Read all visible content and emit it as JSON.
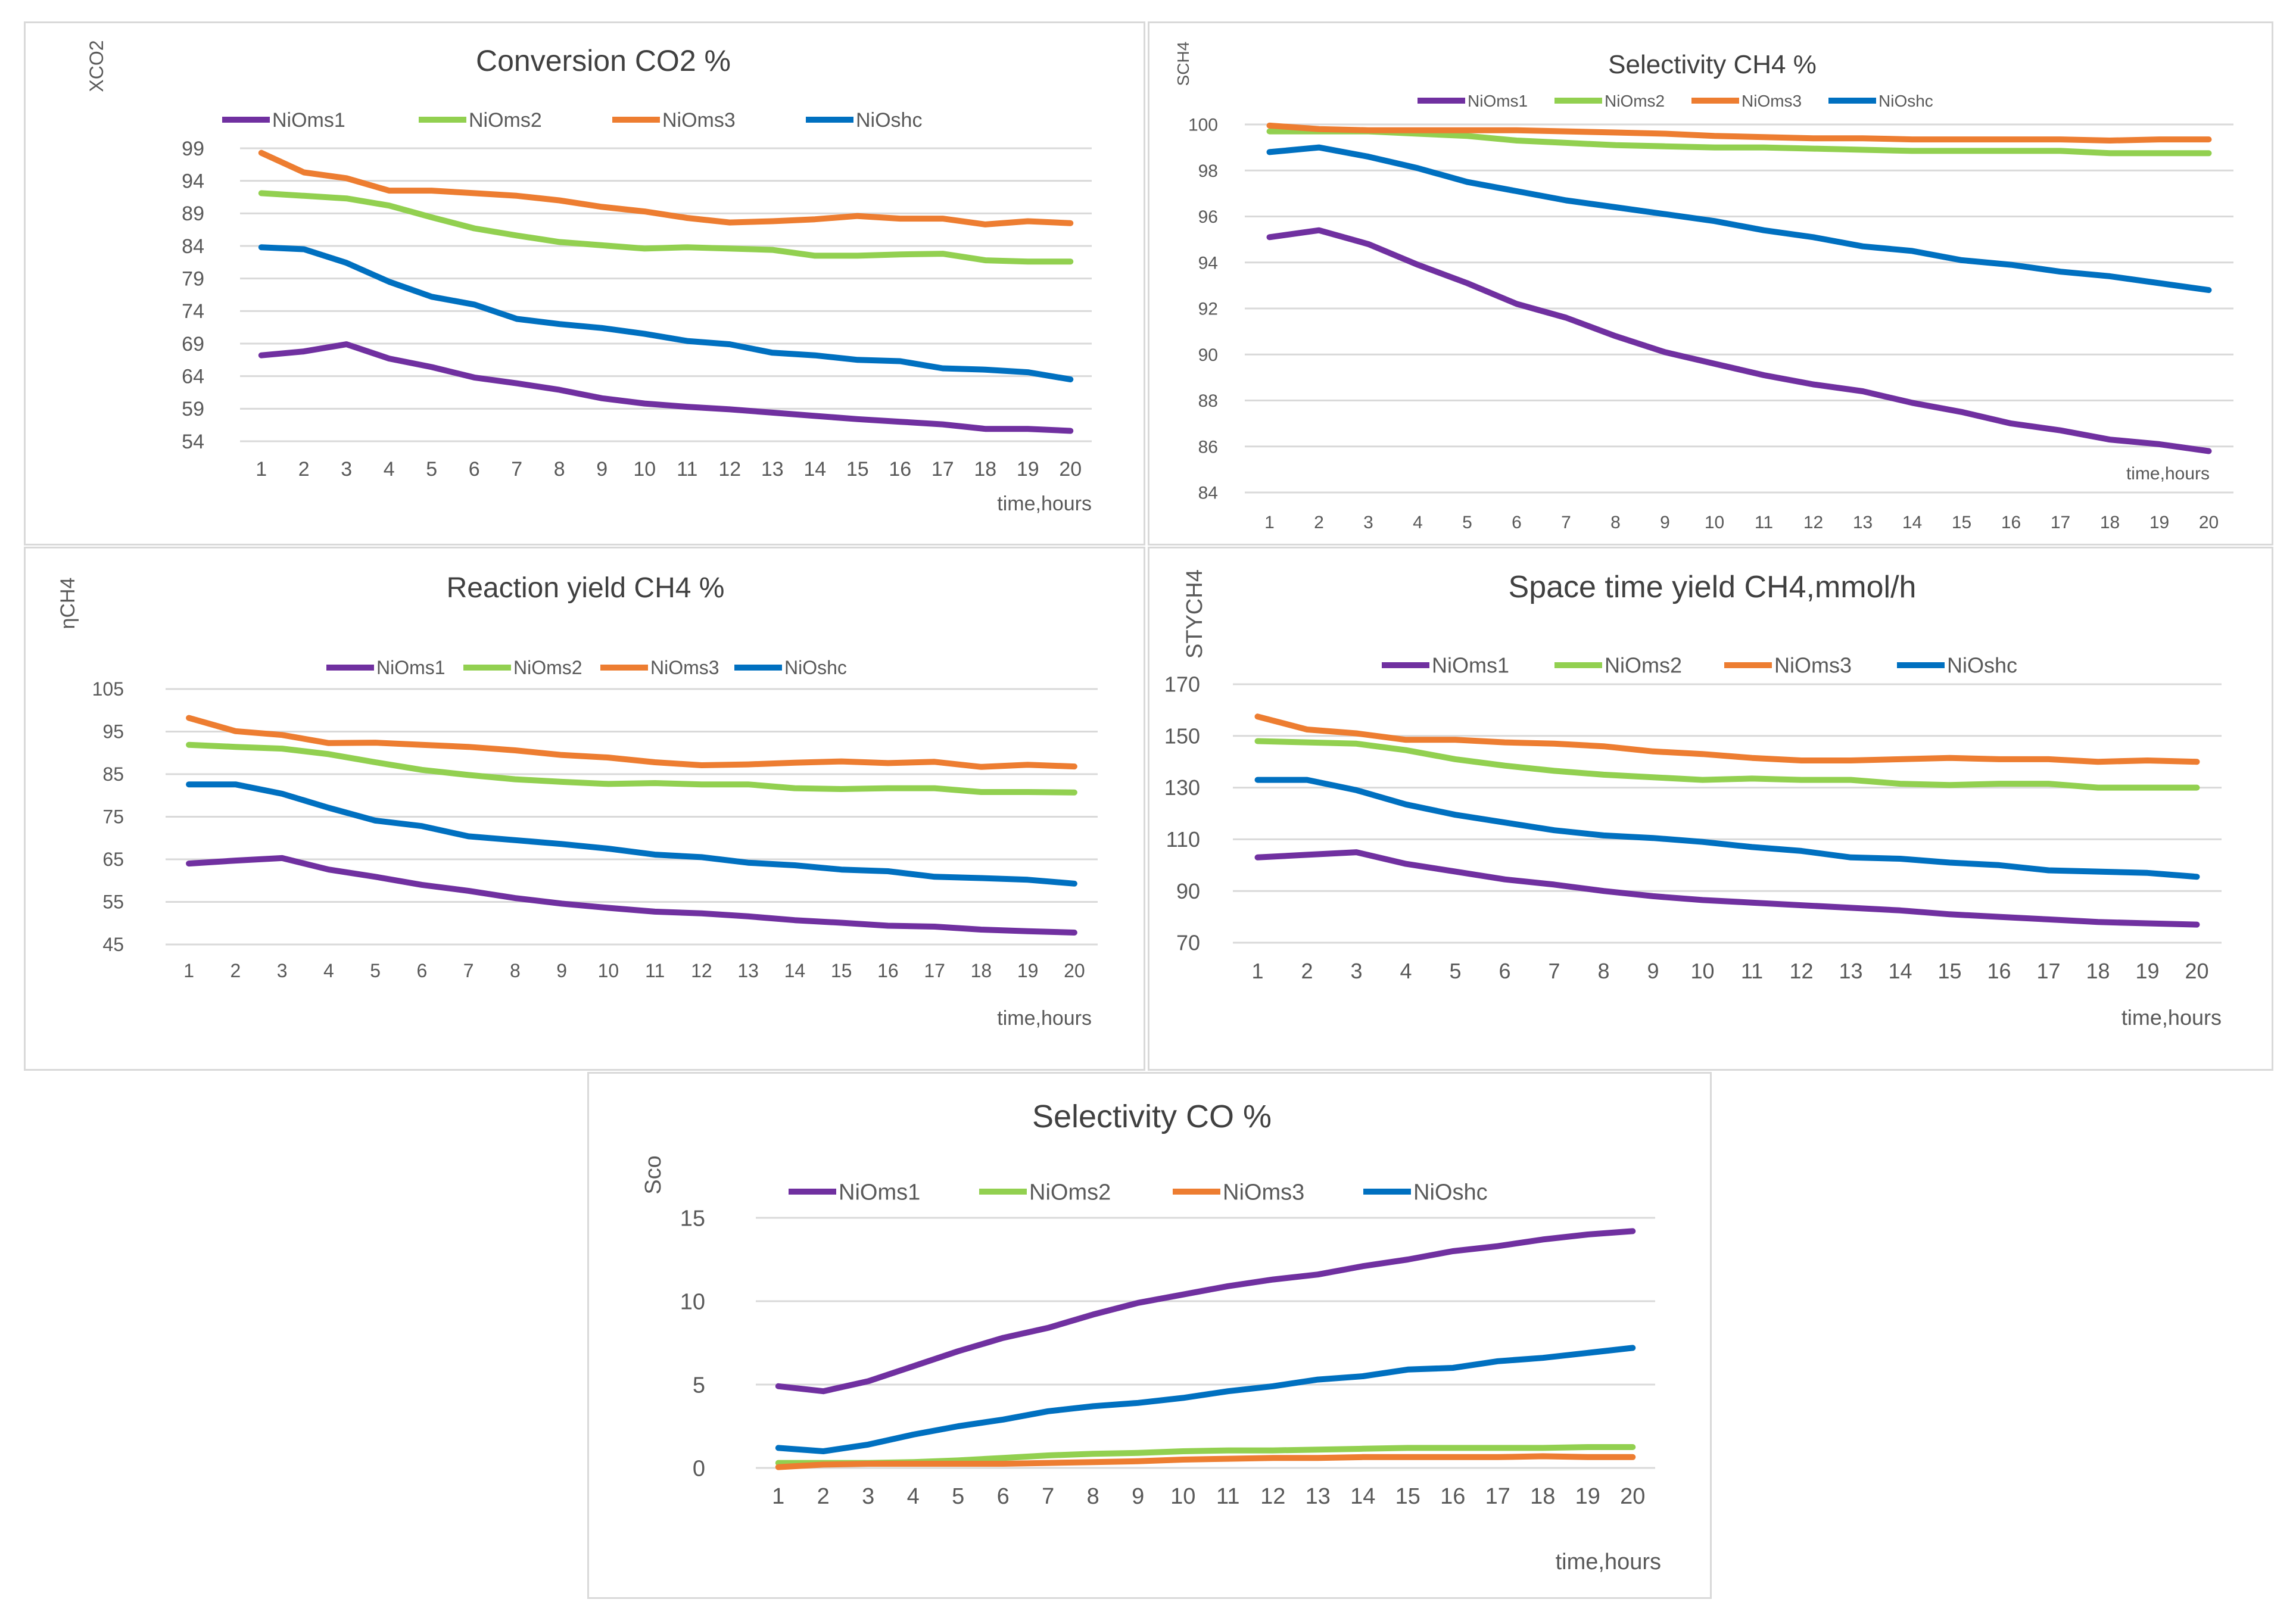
{
  "series_colors": {
    "NiOms1": "#7030a0",
    "NiOms2": "#92d050",
    "NiOms3": "#ed7d31",
    "NiOshc": "#0070c0"
  },
  "chart_data": [
    {
      "type": "line",
      "title": "Conversion CO2 %",
      "ylabel": "XCO2",
      "xlabel": "time,hours",
      "ylim": [
        54,
        99
      ],
      "yticks": [
        "54",
        "59",
        "64",
        "69",
        "74",
        "79",
        "84",
        "89",
        "94",
        "99"
      ],
      "categories": [
        "1",
        "2",
        "3",
        "4",
        "5",
        "6",
        "7",
        "8",
        "9",
        "10",
        "11",
        "12",
        "13",
        "14",
        "15",
        "16",
        "17",
        "18",
        "19",
        "20"
      ],
      "series": [
        {
          "name": "NiOms1",
          "values": [
            67.2,
            67.8,
            68.9,
            66.7,
            65.4,
            63.8,
            62.9,
            61.9,
            60.6,
            59.8,
            59.3,
            58.9,
            58.4,
            57.9,
            57.4,
            57.0,
            56.6,
            55.9,
            55.9,
            55.6
          ]
        },
        {
          "name": "NiOms2",
          "values": [
            92.1,
            91.7,
            91.3,
            90.2,
            88.4,
            86.7,
            85.6,
            84.6,
            84.1,
            83.6,
            83.8,
            83.6,
            83.4,
            82.5,
            82.5,
            82.7,
            82.8,
            81.8,
            81.6,
            81.6
          ]
        },
        {
          "name": "NiOms3",
          "values": [
            98.3,
            95.3,
            94.4,
            92.5,
            92.5,
            92.1,
            91.7,
            91.0,
            90.0,
            89.3,
            88.3,
            87.6,
            87.8,
            88.1,
            88.6,
            88.2,
            88.2,
            87.3,
            87.8,
            87.5
          ]
        },
        {
          "name": "NiOshc",
          "values": [
            83.8,
            83.5,
            81.4,
            78.5,
            76.2,
            75.0,
            72.8,
            72.0,
            71.4,
            70.5,
            69.4,
            68.9,
            67.6,
            67.2,
            66.5,
            66.3,
            65.2,
            65.0,
            64.6,
            63.5
          ]
        }
      ]
    },
    {
      "type": "line",
      "title": "Selectivity CH4 %",
      "ylabel": "SCH4",
      "xlabel": "time,hours",
      "ylim": [
        84,
        100
      ],
      "yticks": [
        "84",
        "86",
        "88",
        "90",
        "92",
        "94",
        "96",
        "98",
        "100"
      ],
      "categories": [
        "1",
        "2",
        "3",
        "4",
        "5",
        "6",
        "7",
        "8",
        "9",
        "10",
        "11",
        "12",
        "13",
        "14",
        "15",
        "16",
        "17",
        "18",
        "19",
        "20"
      ],
      "series": [
        {
          "name": "NiOms1",
          "values": [
            95.1,
            95.4,
            94.8,
            93.9,
            93.1,
            92.2,
            91.6,
            90.8,
            90.1,
            89.6,
            89.1,
            88.7,
            88.4,
            87.9,
            87.5,
            87.0,
            86.7,
            86.3,
            86.1,
            85.8
          ]
        },
        {
          "name": "NiOms2",
          "values": [
            99.7,
            99.7,
            99.7,
            99.6,
            99.5,
            99.3,
            99.2,
            99.1,
            99.05,
            99.0,
            99.0,
            98.95,
            98.9,
            98.85,
            98.85,
            98.85,
            98.85,
            98.75,
            98.75,
            98.75
          ]
        },
        {
          "name": "NiOms3",
          "values": [
            99.95,
            99.8,
            99.75,
            99.75,
            99.75,
            99.75,
            99.7,
            99.65,
            99.6,
            99.5,
            99.45,
            99.4,
            99.4,
            99.35,
            99.35,
            99.35,
            99.35,
            99.3,
            99.35,
            99.35
          ]
        },
        {
          "name": "NiOshc",
          "values": [
            98.8,
            99.0,
            98.6,
            98.1,
            97.5,
            97.1,
            96.7,
            96.4,
            96.1,
            95.8,
            95.4,
            95.1,
            94.7,
            94.5,
            94.1,
            93.9,
            93.6,
            93.4,
            93.1,
            92.8
          ]
        }
      ]
    },
    {
      "type": "line",
      "title": "Reaction yield CH4 %",
      "ylabel": "ηCH4",
      "xlabel": "time,hours",
      "ylim": [
        45,
        105
      ],
      "yticks": [
        "45",
        "55",
        "65",
        "75",
        "85",
        "95",
        "105"
      ],
      "categories": [
        "1",
        "2",
        "3",
        "4",
        "5",
        "6",
        "7",
        "8",
        "9",
        "10",
        "11",
        "12",
        "13",
        "14",
        "15",
        "16",
        "17",
        "18",
        "19",
        "20"
      ],
      "series": [
        {
          "name": "NiOms1",
          "values": [
            64.0,
            64.7,
            65.3,
            62.6,
            60.9,
            59.0,
            57.6,
            55.9,
            54.6,
            53.6,
            52.7,
            52.3,
            51.6,
            50.7,
            50.1,
            49.4,
            49.2,
            48.5,
            48.1,
            47.8
          ]
        },
        {
          "name": "NiOms2",
          "values": [
            91.9,
            91.4,
            91.0,
            89.7,
            87.8,
            86.0,
            84.8,
            83.8,
            83.2,
            82.7,
            82.9,
            82.6,
            82.6,
            81.7,
            81.5,
            81.7,
            81.7,
            80.8,
            80.8,
            80.7
          ]
        },
        {
          "name": "NiOms3",
          "values": [
            98.2,
            95.1,
            94.2,
            92.3,
            92.4,
            91.9,
            91.4,
            90.6,
            89.5,
            88.9,
            87.8,
            87.1,
            87.3,
            87.7,
            88.0,
            87.6,
            87.9,
            86.7,
            87.2,
            86.8
          ]
        },
        {
          "name": "NiOshc",
          "values": [
            82.6,
            82.6,
            80.4,
            77.1,
            74.1,
            72.8,
            70.4,
            69.5,
            68.6,
            67.5,
            66.1,
            65.5,
            64.2,
            63.6,
            62.6,
            62.2,
            60.9,
            60.6,
            60.2,
            59.3
          ]
        }
      ]
    },
    {
      "type": "line",
      "title": "Space time  yield CH4,mmol/h",
      "ylabel": "STYCH4",
      "xlabel": "time,hours",
      "ylim": [
        70,
        170
      ],
      "yticks": [
        "70",
        "90",
        "110",
        "130",
        "150",
        "170"
      ],
      "categories": [
        "1",
        "2",
        "3",
        "4",
        "5",
        "6",
        "7",
        "8",
        "9",
        "10",
        "11",
        "12",
        "13",
        "14",
        "15",
        "16",
        "17",
        "18",
        "19",
        "20"
      ],
      "series": [
        {
          "name": "NiOms1",
          "values": [
            103,
            104,
            105,
            100.5,
            97.5,
            94.5,
            92.5,
            90,
            88,
            86.5,
            85.5,
            84.5,
            83.5,
            82.5,
            81,
            80,
            79,
            78,
            77.5,
            77
          ]
        },
        {
          "name": "NiOms2",
          "values": [
            148,
            147.5,
            147,
            144.5,
            141,
            138.5,
            136.5,
            135,
            134,
            133,
            133.5,
            133,
            133,
            131.5,
            131,
            131.5,
            131.5,
            130,
            130,
            130
          ]
        },
        {
          "name": "NiOms3",
          "values": [
            157.5,
            152.5,
            151,
            148.5,
            148.5,
            147.5,
            147,
            146,
            144,
            143,
            141.5,
            140.5,
            140.5,
            141,
            141.5,
            141,
            141,
            140,
            140.5,
            140
          ]
        },
        {
          "name": "NiOshc",
          "values": [
            133,
            133,
            129,
            123.5,
            119.5,
            116.5,
            113.5,
            111.5,
            110.5,
            109,
            107,
            105.5,
            103,
            102.5,
            101,
            100,
            98,
            97.5,
            97,
            95.5
          ]
        }
      ]
    },
    {
      "type": "line",
      "title": "Selectivity CO %",
      "ylabel": "Sco",
      "xlabel": "time,hours",
      "ylim": [
        0,
        15
      ],
      "yticks": [
        "0",
        "5",
        "10",
        "15"
      ],
      "categories": [
        "1",
        "2",
        "3",
        "4",
        "5",
        "6",
        "7",
        "8",
        "9",
        "10",
        "11",
        "12",
        "13",
        "14",
        "15",
        "16",
        "17",
        "18",
        "19",
        "20"
      ],
      "series": [
        {
          "name": "NiOms1",
          "values": [
            4.9,
            4.6,
            5.2,
            6.1,
            7.0,
            7.8,
            8.4,
            9.2,
            9.9,
            10.4,
            10.9,
            11.3,
            11.6,
            12.1,
            12.5,
            13.0,
            13.3,
            13.7,
            14.0,
            14.2
          ]
        },
        {
          "name": "NiOms2",
          "values": [
            0.3,
            0.3,
            0.3,
            0.35,
            0.45,
            0.6,
            0.75,
            0.85,
            0.9,
            1.0,
            1.05,
            1.05,
            1.1,
            1.15,
            1.2,
            1.2,
            1.2,
            1.2,
            1.25,
            1.25
          ]
        },
        {
          "name": "NiOms3",
          "values": [
            0.05,
            0.2,
            0.25,
            0.25,
            0.25,
            0.25,
            0.3,
            0.35,
            0.4,
            0.5,
            0.55,
            0.6,
            0.6,
            0.65,
            0.65,
            0.65,
            0.65,
            0.7,
            0.65,
            0.65
          ]
        },
        {
          "name": "NiOshc",
          "values": [
            1.2,
            1.0,
            1.4,
            2.0,
            2.5,
            2.9,
            3.4,
            3.7,
            3.9,
            4.2,
            4.6,
            4.9,
            5.3,
            5.5,
            5.9,
            6.0,
            6.4,
            6.6,
            6.9,
            7.2
          ]
        }
      ]
    }
  ]
}
